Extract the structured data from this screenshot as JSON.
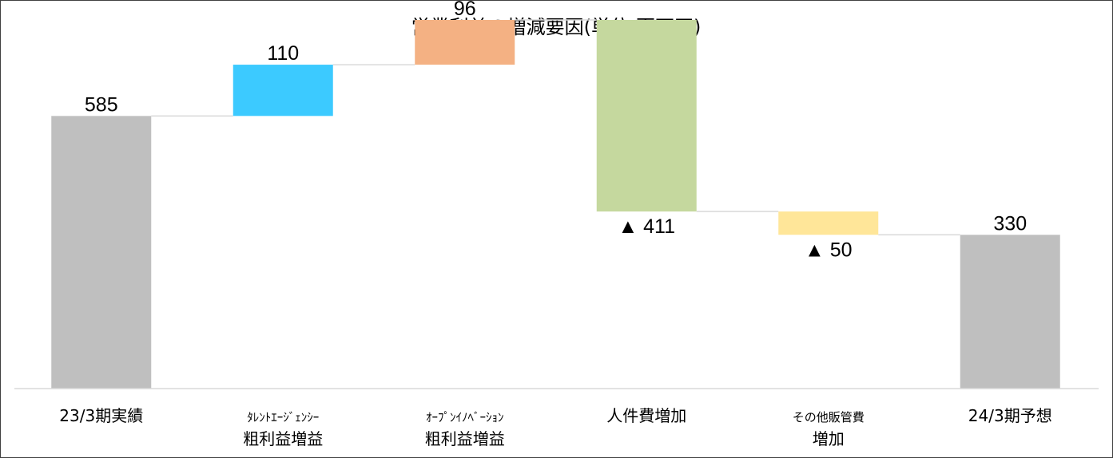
{
  "chart_data": {
    "type": "bar",
    "subtype": "waterfall",
    "title": "営業利益の増減要因(単位:百万円)",
    "categories": [
      [
        "23/3期実績"
      ],
      [
        "ﾀﾚﾝﾄｴｰｼﾞｪﾝｼｰ",
        "粗利益増益"
      ],
      [
        "ｵｰﾌﾟﾝｲﾉﾍﾞｰｼｮﾝ",
        "粗利益増益"
      ],
      [
        "人件費増加"
      ],
      [
        "その他販管費",
        "増加"
      ],
      [
        "24/3期予想"
      ]
    ],
    "values": [
      585,
      110,
      96,
      -411,
      -50,
      330
    ],
    "kinds": [
      "total",
      "increase",
      "increase",
      "decrease",
      "decrease",
      "total"
    ],
    "data_labels": [
      "585",
      "110",
      "96",
      "▲ 411",
      "▲ 50",
      "330"
    ],
    "colors": [
      "#bfbfbf",
      "#3ccaff",
      "#f4b183",
      "#c5d89e",
      "#ffe699",
      "#bfbfbf"
    ],
    "ylim": [
      0,
      791
    ],
    "grid": false,
    "legend": "none"
  }
}
